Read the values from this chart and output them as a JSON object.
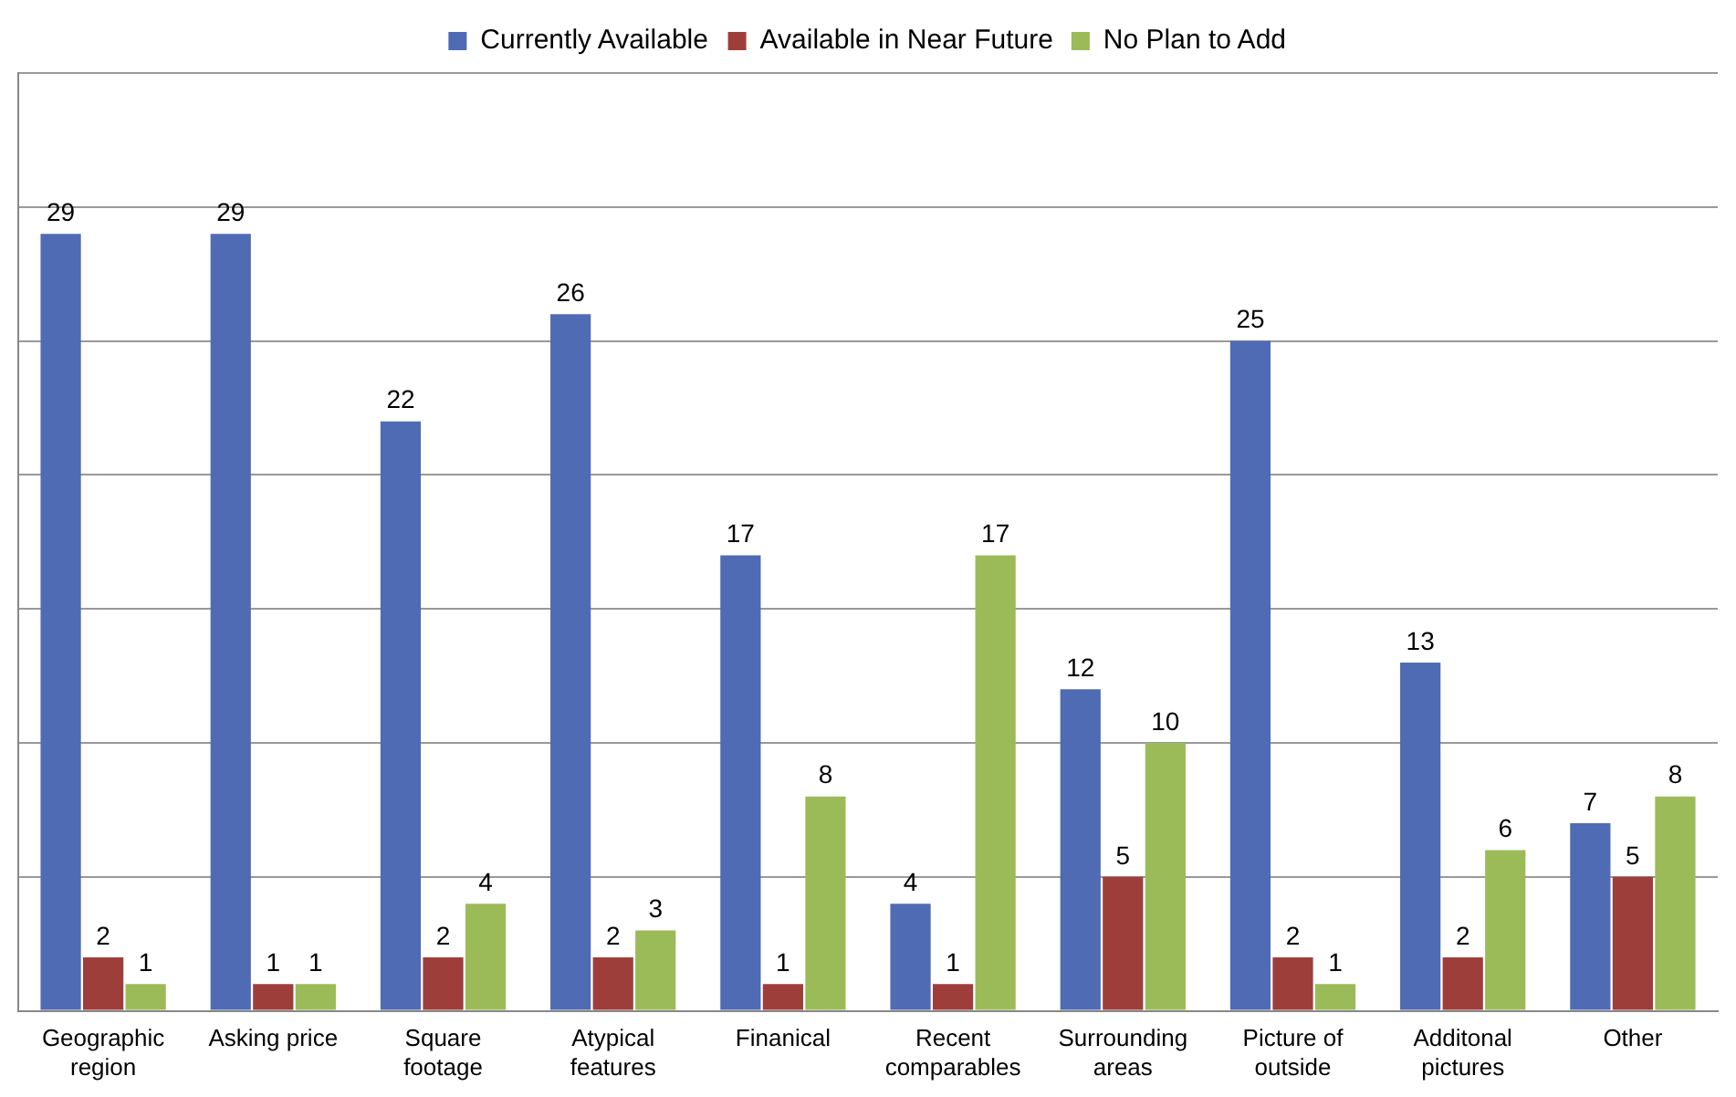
{
  "chart_data": {
    "type": "bar",
    "categories": [
      "Geographic region",
      "Asking price",
      "Square footage",
      "Atypical features",
      "Finanical",
      "Recent comparables",
      "Surrounding areas",
      "Picture of outside",
      "Additonal pictures",
      "Other"
    ],
    "series": [
      {
        "name": "Currently Available",
        "color": "#4f6bb3",
        "values": [
          29,
          29,
          22,
          26,
          17,
          4,
          12,
          25,
          13,
          7
        ]
      },
      {
        "name": "Available in Near Future",
        "color": "#9e3e3b",
        "values": [
          2,
          1,
          2,
          2,
          1,
          1,
          5,
          2,
          2,
          5
        ]
      },
      {
        "name": "No Plan to Add",
        "color": "#9bbb59",
        "values": [
          1,
          1,
          4,
          3,
          8,
          17,
          10,
          1,
          6,
          8
        ]
      }
    ],
    "ylim": [
      0,
      35
    ],
    "yticks": [
      {
        "value": 0,
        "label": null
      },
      {
        "value": 5,
        "label": null
      },
      {
        "value": 10,
        "label": null
      },
      {
        "value": 15,
        "label": null
      },
      {
        "value": 20,
        "label": null
      },
      {
        "value": 25,
        "label": null
      },
      {
        "value": 30,
        "label": null
      },
      {
        "value": 35,
        "label": null
      }
    ],
    "tick_labels": "x",
    "grid": "y",
    "legend": "top",
    "data_labels": true
  }
}
